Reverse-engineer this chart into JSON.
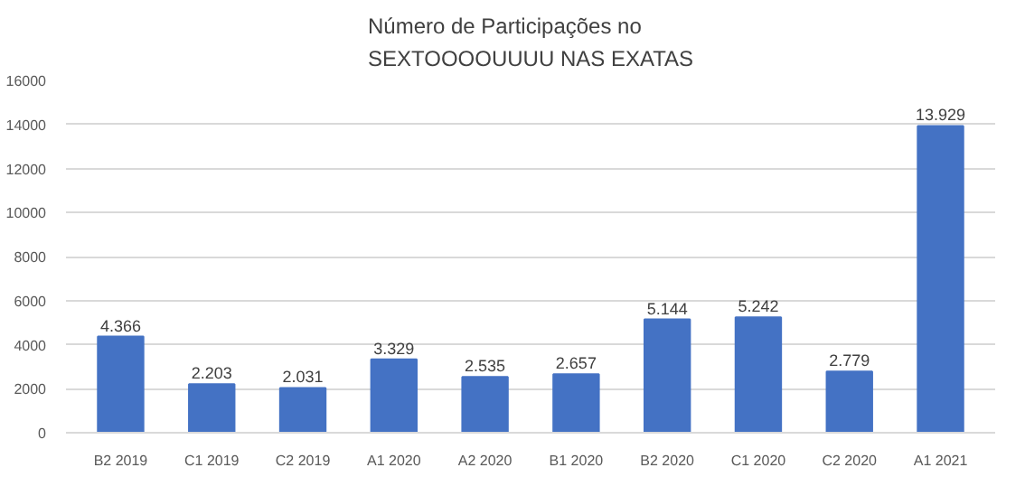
{
  "chart_data": {
    "type": "bar",
    "title": "Número de Participações no\nSEXTOOOOUUUU NAS EXATAS",
    "categories": [
      "B2 2019",
      "C1 2019",
      "C2 2019",
      "A1 2020",
      "A2 2020",
      "B1 2020",
      "B2 2020",
      "C1 2020",
      "C2 2020",
      "A1 2021"
    ],
    "values": [
      4366,
      2203,
      2031,
      3329,
      2535,
      2657,
      5144,
      5242,
      2779,
      13929
    ],
    "value_labels": [
      "4.366",
      "2.203",
      "2.031",
      "3.329",
      "2.535",
      "2.657",
      "5.144",
      "5.242",
      "2.779",
      "13.929"
    ],
    "color": "#4472c4",
    "ylim": [
      0,
      16000
    ],
    "yticks": [
      0,
      2000,
      4000,
      6000,
      8000,
      10000,
      12000,
      14000,
      16000
    ],
    "grid": "y"
  }
}
